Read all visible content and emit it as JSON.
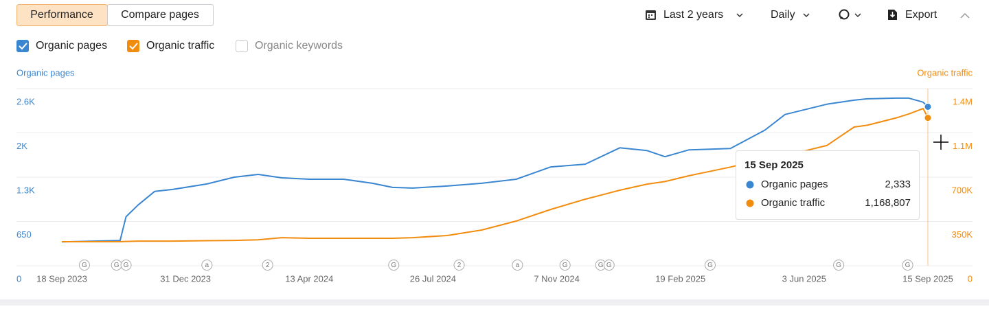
{
  "ui": {
    "tabs": [
      "Performance",
      "Compare pages"
    ],
    "period": "Last 2 years",
    "interval": "Daily",
    "export": "Export",
    "legend_extra": "Organic keywords"
  },
  "chart_data": {
    "type": "line",
    "y_label": "Organic pages",
    "y2_label": "Organic traffic",
    "x": [
      "2023-09-18",
      "2023-11-06",
      "2023-11-11",
      "2023-11-21",
      "2023-12-05",
      "2023-12-20",
      "2024-01-18",
      "2024-02-10",
      "2024-03-01",
      "2024-03-21",
      "2024-04-13",
      "2024-05-12",
      "2024-06-05",
      "2024-06-22",
      "2024-07-09",
      "2024-08-07",
      "2024-09-05",
      "2024-10-04",
      "2024-11-02",
      "2024-12-01",
      "2024-12-30",
      "2025-01-22",
      "2025-02-06",
      "2025-02-26",
      "2025-04-02",
      "2025-05-01",
      "2025-05-18",
      "2025-06-22",
      "2025-07-15",
      "2025-07-26",
      "2025-08-19",
      "2025-08-30",
      "2025-09-11",
      "2025-09-15"
    ],
    "series": [
      {
        "name": "Organic pages",
        "color": "#3a86d1",
        "axis": "y",
        "values": [
          350,
          370,
          720,
          890,
          1090,
          1120,
          1200,
          1300,
          1340,
          1290,
          1270,
          1270,
          1210,
          1150,
          1140,
          1170,
          1210,
          1270,
          1450,
          1490,
          1730,
          1690,
          1600,
          1700,
          1720,
          1990,
          2220,
          2370,
          2430,
          2450,
          2460,
          2460,
          2400,
          2333
        ]
      },
      {
        "name": "Organic traffic",
        "color": "#f28c0e",
        "axis": "y2",
        "values": [
          190000,
          190000,
          192000,
          195000,
          195000,
          195000,
          198000,
          200000,
          205000,
          222000,
          217000,
          217000,
          217000,
          217000,
          222000,
          239000,
          282000,
          353000,
          445000,
          526000,
          597000,
          645000,
          665000,
          711000,
          780000,
          845000,
          870000,
          950000,
          1096000,
          1110000,
          1167000,
          1200000,
          1242000,
          1168807
        ]
      }
    ],
    "xlim": [
      "2023-09-18",
      "2025-09-15"
    ],
    "xticks": [
      {
        "value": "2023-09-18",
        "label": "18 Sep 2023"
      },
      {
        "value": "2023-12-31",
        "label": "31 Dec 2023"
      },
      {
        "value": "2024-04-13",
        "label": "13 Apr 2024"
      },
      {
        "value": "2024-07-26",
        "label": "26 Jul 2024"
      },
      {
        "value": "2024-11-07",
        "label": "7 Nov 2024"
      },
      {
        "value": "2025-02-19",
        "label": "19 Feb 2025"
      },
      {
        "value": "2025-06-03",
        "label": "3 Jun 2025"
      },
      {
        "value": "2025-09-15",
        "label": "15 Sep 2025"
      }
    ],
    "ylim": [
      0,
      2600
    ],
    "yticks": [
      0,
      650,
      {
        "value": 1300,
        "label": "1.3K"
      },
      {
        "value": 1950,
        "label": "2K"
      },
      {
        "value": 2600,
        "label": "2.6K"
      }
    ],
    "y2lim": [
      0,
      1400000
    ],
    "y2ticks": [
      0,
      {
        "value": 350000,
        "label": "350K"
      },
      {
        "value": 700000,
        "label": "700K"
      },
      {
        "value": 1050000,
        "label": "1.1M"
      },
      {
        "value": 1400000,
        "label": "1.4M"
      }
    ],
    "grid": true,
    "annotations": [
      {
        "x": "2023-10-07",
        "label": "G"
      },
      {
        "x": "2023-11-03",
        "label": "G"
      },
      {
        "x": "2023-11-11",
        "label": "G"
      },
      {
        "x": "2024-01-18",
        "label": "a"
      },
      {
        "x": "2024-03-09",
        "label": "2"
      },
      {
        "x": "2024-06-23",
        "label": "G"
      },
      {
        "x": "2024-08-17",
        "label": "2"
      },
      {
        "x": "2024-10-05",
        "label": "a"
      },
      {
        "x": "2024-11-14",
        "label": "G"
      },
      {
        "x": "2024-12-14",
        "label": "G"
      },
      {
        "x": "2024-12-21",
        "label": "G"
      },
      {
        "x": "2025-03-16",
        "label": "G"
      },
      {
        "x": "2025-07-02",
        "label": "G"
      },
      {
        "x": "2025-08-29",
        "label": "G"
      }
    ],
    "tooltip": {
      "title": "15 Sep 2025",
      "x": "2025-09-15",
      "values": [
        {
          "value": 2333,
          "label": "2,333"
        },
        {
          "value": 1168807,
          "label": "1,168,807"
        }
      ]
    }
  }
}
